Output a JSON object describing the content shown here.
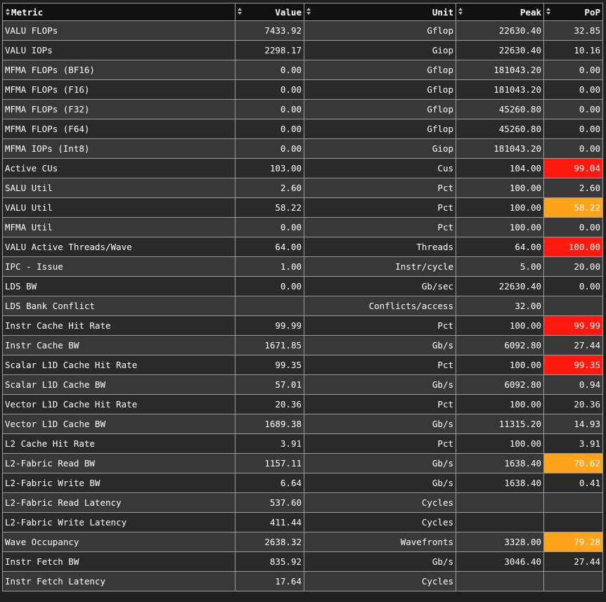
{
  "headers": {
    "metric": "Metric",
    "value": "Value",
    "unit": "Unit",
    "peak": "Peak",
    "pop": "PoP"
  },
  "colors": {
    "high": "#ff1a0f",
    "mid": "#ffa41a"
  },
  "rows": [
    {
      "metric": "VALU FLOPs",
      "value": "7433.92",
      "unit": "Gflop",
      "peak": "22630.40",
      "pop": "32.85",
      "level": ""
    },
    {
      "metric": "VALU IOPs",
      "value": "2298.17",
      "unit": "Giop",
      "peak": "22630.40",
      "pop": "10.16",
      "level": ""
    },
    {
      "metric": "MFMA FLOPs (BF16)",
      "value": "0.00",
      "unit": "Gflop",
      "peak": "181043.20",
      "pop": "0.00",
      "level": ""
    },
    {
      "metric": "MFMA FLOPs (F16)",
      "value": "0.00",
      "unit": "Gflop",
      "peak": "181043.20",
      "pop": "0.00",
      "level": ""
    },
    {
      "metric": "MFMA FLOPs (F32)",
      "value": "0.00",
      "unit": "Gflop",
      "peak": "45260.80",
      "pop": "0.00",
      "level": ""
    },
    {
      "metric": "MFMA FLOPs (F64)",
      "value": "0.00",
      "unit": "Gflop",
      "peak": "45260.80",
      "pop": "0.00",
      "level": ""
    },
    {
      "metric": "MFMA IOPs (Int8)",
      "value": "0.00",
      "unit": "Giop",
      "peak": "181043.20",
      "pop": "0.00",
      "level": ""
    },
    {
      "metric": "Active CUs",
      "value": "103.00",
      "unit": "Cus",
      "peak": "104.00",
      "pop": "99.04",
      "level": "red"
    },
    {
      "metric": "SALU Util",
      "value": "2.60",
      "unit": "Pct",
      "peak": "100.00",
      "pop": "2.60",
      "level": ""
    },
    {
      "metric": "VALU Util",
      "value": "58.22",
      "unit": "Pct",
      "peak": "100.00",
      "pop": "58.22",
      "level": "orange"
    },
    {
      "metric": "MFMA Util",
      "value": "0.00",
      "unit": "Pct",
      "peak": "100.00",
      "pop": "0.00",
      "level": ""
    },
    {
      "metric": "VALU Active Threads/Wave",
      "value": "64.00",
      "unit": "Threads",
      "peak": "64.00",
      "pop": "100.00",
      "level": "red"
    },
    {
      "metric": "IPC - Issue",
      "value": "1.00",
      "unit": "Instr/cycle",
      "peak": "5.00",
      "pop": "20.00",
      "level": ""
    },
    {
      "metric": "LDS BW",
      "value": "0.00",
      "unit": "Gb/sec",
      "peak": "22630.40",
      "pop": "0.00",
      "level": ""
    },
    {
      "metric": "LDS Bank Conflict",
      "value": "",
      "unit": "Conflicts/access",
      "peak": "32.00",
      "pop": "",
      "level": ""
    },
    {
      "metric": "Instr Cache Hit Rate",
      "value": "99.99",
      "unit": "Pct",
      "peak": "100.00",
      "pop": "99.99",
      "level": "red"
    },
    {
      "metric": "Instr Cache BW",
      "value": "1671.85",
      "unit": "Gb/s",
      "peak": "6092.80",
      "pop": "27.44",
      "level": ""
    },
    {
      "metric": "Scalar L1D Cache Hit Rate",
      "value": "99.35",
      "unit": "Pct",
      "peak": "100.00",
      "pop": "99.35",
      "level": "red"
    },
    {
      "metric": "Scalar L1D Cache BW",
      "value": "57.01",
      "unit": "Gb/s",
      "peak": "6092.80",
      "pop": "0.94",
      "level": ""
    },
    {
      "metric": "Vector L1D Cache Hit Rate",
      "value": "20.36",
      "unit": "Pct",
      "peak": "100.00",
      "pop": "20.36",
      "level": ""
    },
    {
      "metric": "Vector L1D Cache BW",
      "value": "1689.38",
      "unit": "Gb/s",
      "peak": "11315.20",
      "pop": "14.93",
      "level": ""
    },
    {
      "metric": "L2 Cache Hit Rate",
      "value": "3.91",
      "unit": "Pct",
      "peak": "100.00",
      "pop": "3.91",
      "level": ""
    },
    {
      "metric": "L2-Fabric Read BW",
      "value": "1157.11",
      "unit": "Gb/s",
      "peak": "1638.40",
      "pop": "70.62",
      "level": "orange"
    },
    {
      "metric": "L2-Fabric Write BW",
      "value": "6.64",
      "unit": "Gb/s",
      "peak": "1638.40",
      "pop": "0.41",
      "level": ""
    },
    {
      "metric": "L2-Fabric Read Latency",
      "value": "537.60",
      "unit": "Cycles",
      "peak": "",
      "pop": "",
      "level": ""
    },
    {
      "metric": "L2-Fabric Write Latency",
      "value": "411.44",
      "unit": "Cycles",
      "peak": "",
      "pop": "",
      "level": ""
    },
    {
      "metric": "Wave Occupancy",
      "value": "2638.32",
      "unit": "Wavefronts",
      "peak": "3328.00",
      "pop": "79.28",
      "level": "orange"
    },
    {
      "metric": "Instr Fetch BW",
      "value": "835.92",
      "unit": "Gb/s",
      "peak": "3046.40",
      "pop": "27.44",
      "level": ""
    },
    {
      "metric": "Instr Fetch Latency",
      "value": "17.64",
      "unit": "Cycles",
      "peak": "",
      "pop": "",
      "level": ""
    }
  ]
}
